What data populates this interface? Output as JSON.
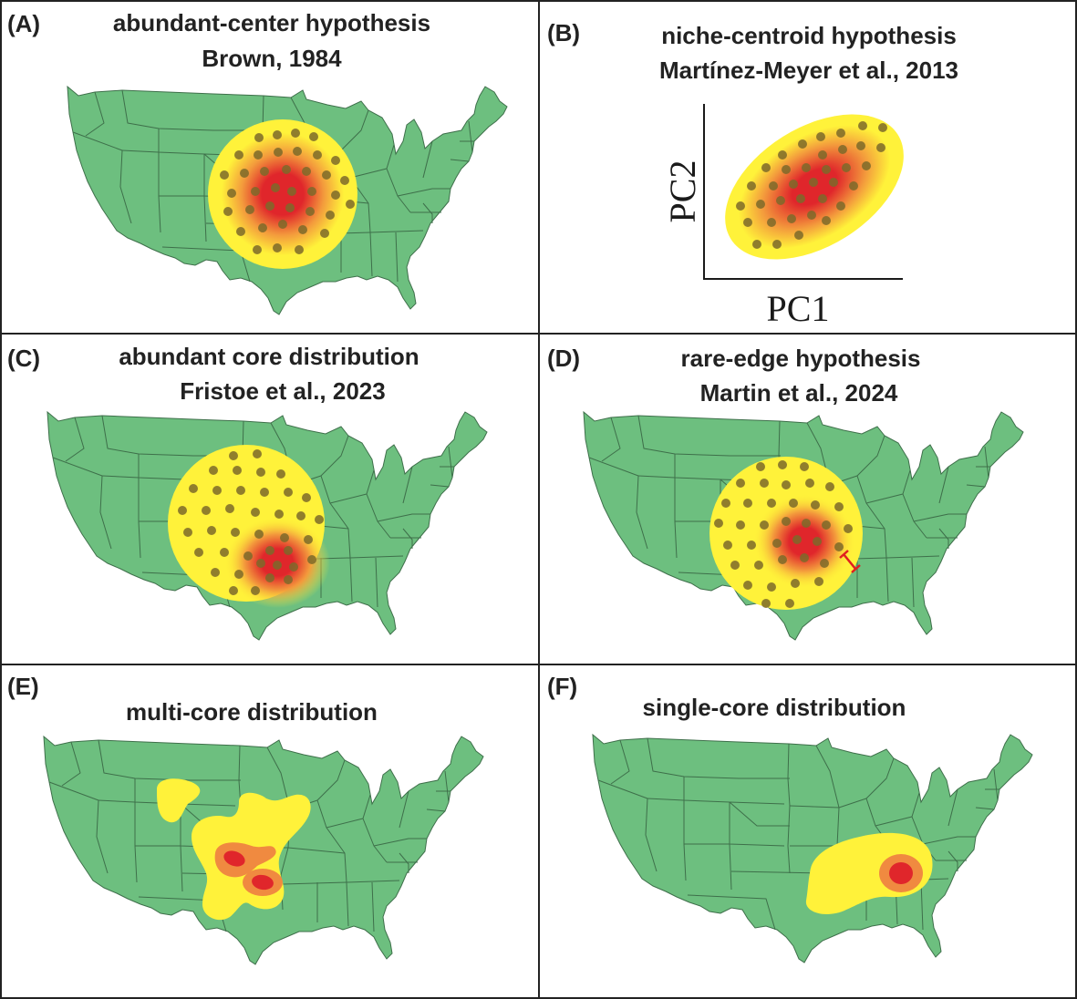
{
  "colors": {
    "land": "#6dbf7f",
    "border": "#3e6f4a",
    "range": "#fff23a",
    "core": "#e0262b",
    "mid": "#f08a40",
    "point": "#7d6a2a",
    "frame": "#222222",
    "gap": "#e02020"
  },
  "panels": [
    {
      "label": "(A)",
      "title_lines": [
        "abundant-center hypothesis",
        "Brown, 1984"
      ]
    },
    {
      "label": "(B)",
      "title_lines": [
        "niche-centroid hypothesis",
        "Martínez-Meyer et al., 2013"
      ]
    },
    {
      "label": "(C)",
      "title_lines": [
        "abundant core distribution",
        "Fristoe et al., 2023"
      ]
    },
    {
      "label": "(D)",
      "title_lines": [
        "rare-edge hypothesis",
        "Martin et al., 2024"
      ]
    },
    {
      "label": "(E)",
      "title_lines": [
        "multi-core distribution"
      ]
    },
    {
      "label": "(F)",
      "title_lines": [
        "single-core distribution"
      ]
    }
  ],
  "niche_plot": {
    "xlabel": "PC1",
    "ylabel": "PC2"
  }
}
